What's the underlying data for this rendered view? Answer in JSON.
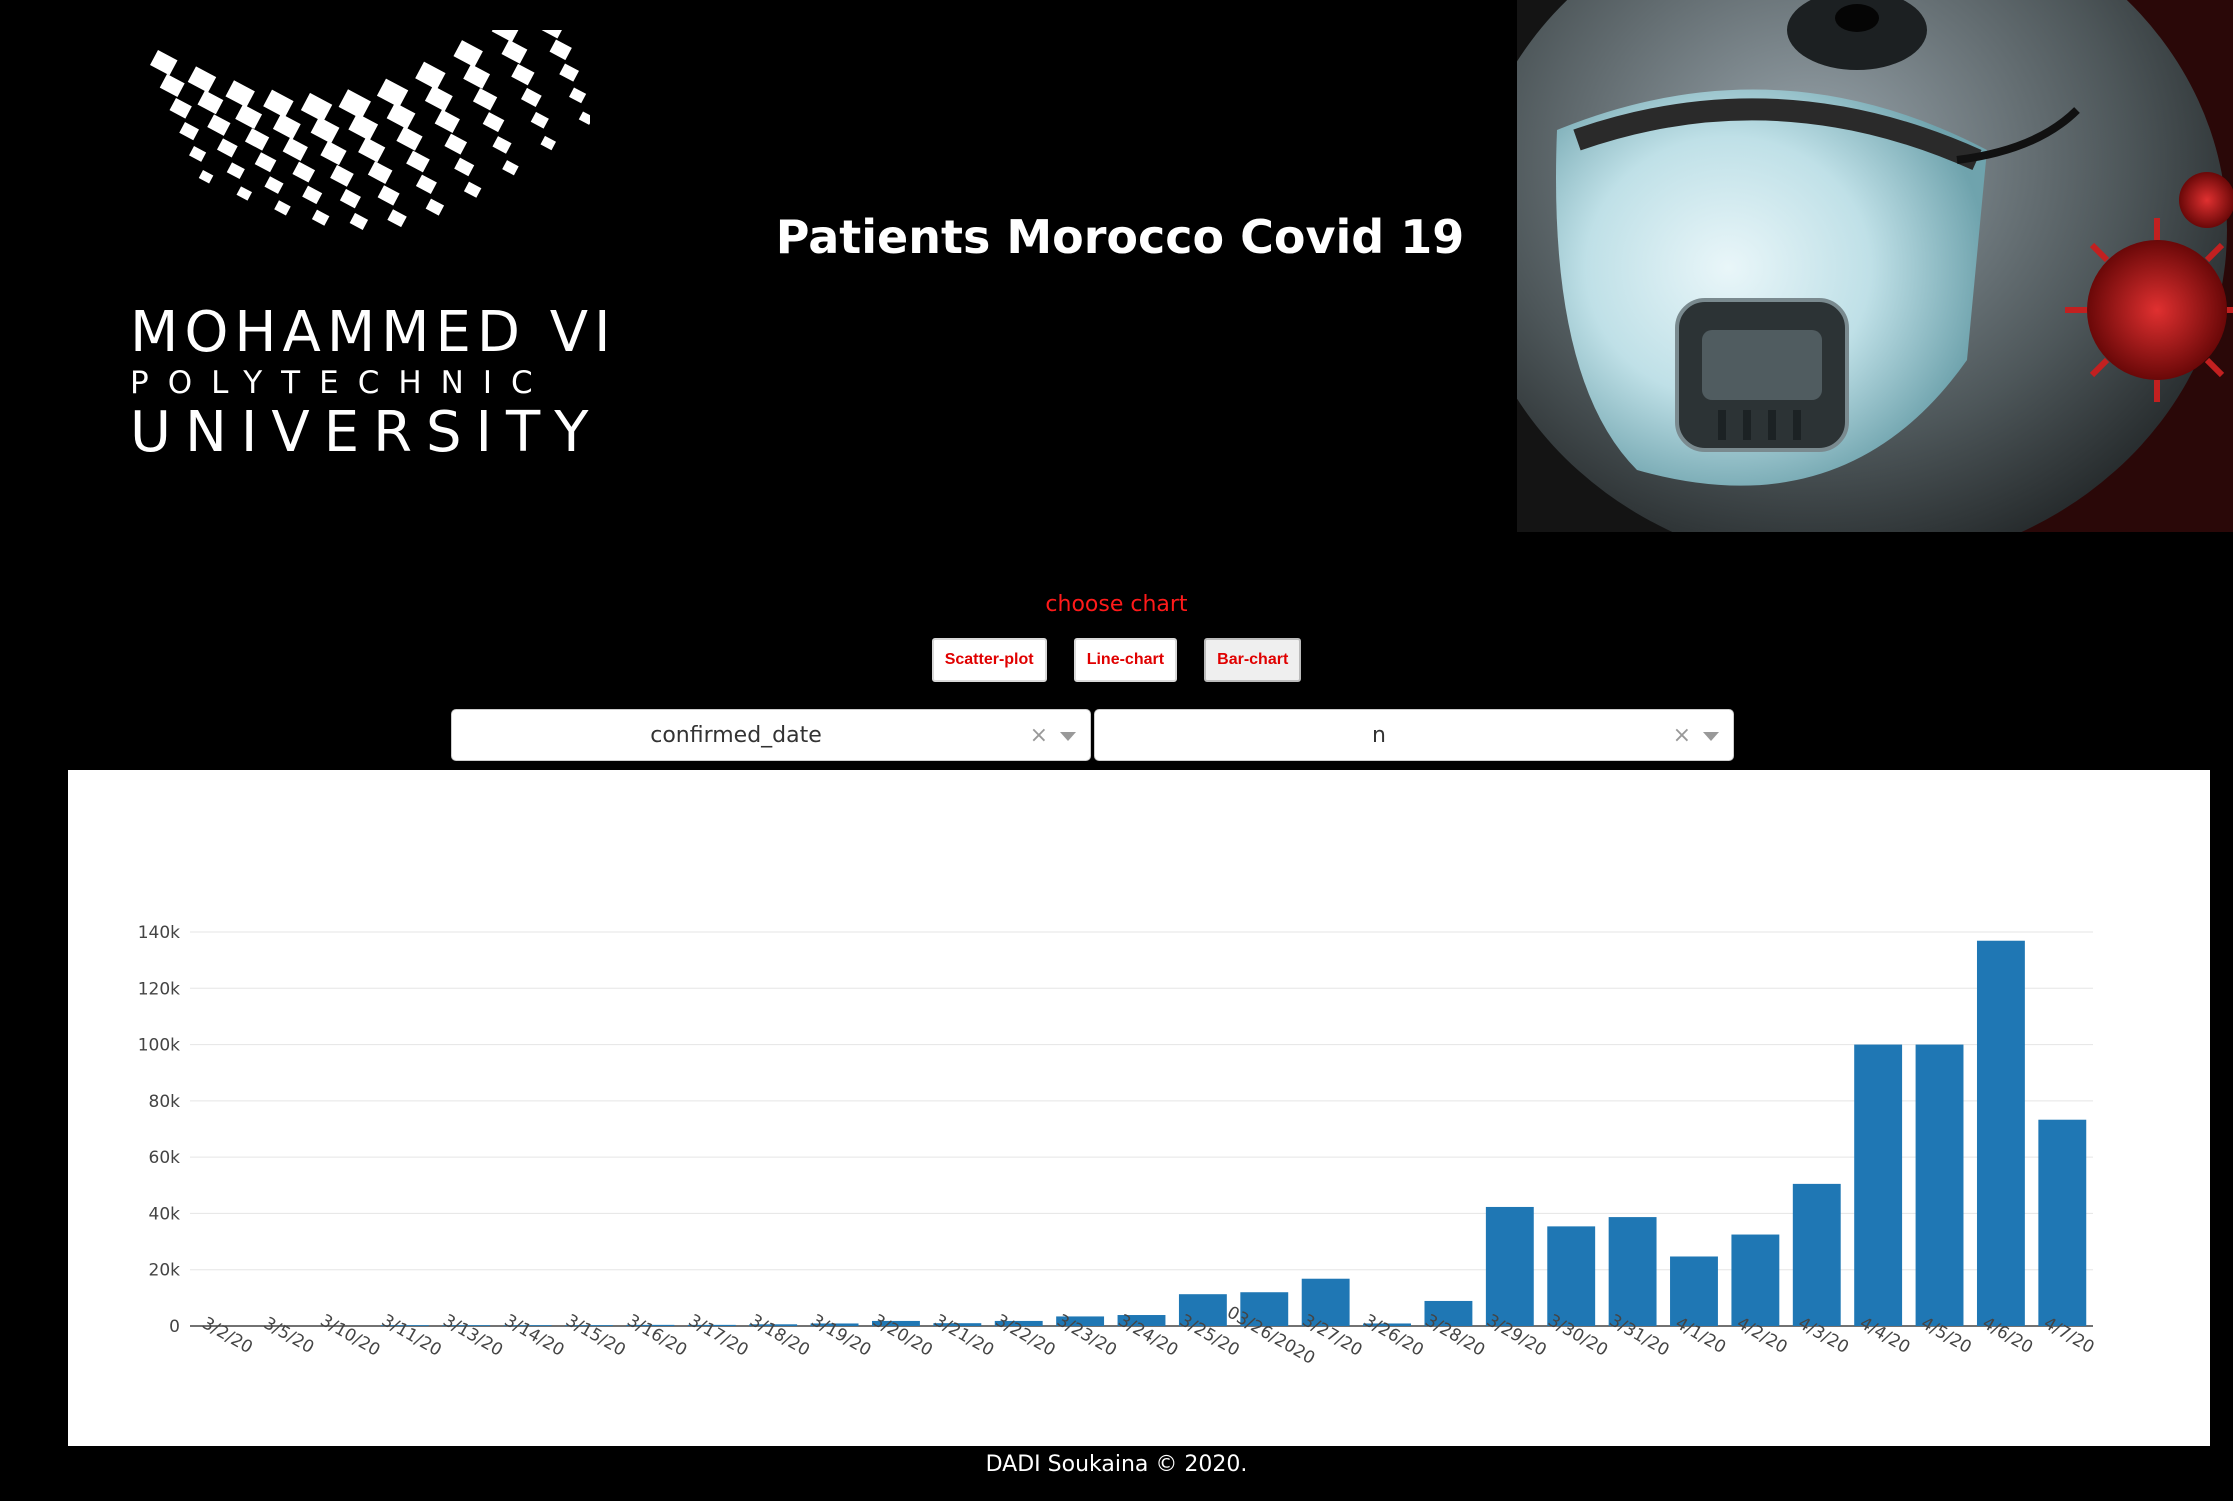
{
  "header": {
    "logo": {
      "line1": "MOHAMMED VI",
      "line2": "POLYTECHNIC",
      "line3": "UNIVERSITY"
    },
    "title": "Patients Morocco Covid 19"
  },
  "controls": {
    "choose_label": "choose chart",
    "buttons": [
      {
        "label": "Scatter-plot",
        "active": false
      },
      {
        "label": "Line-chart",
        "active": false
      },
      {
        "label": "Bar-chart",
        "active": true
      }
    ],
    "x_dropdown": {
      "value": "confirmed_date",
      "clear": "×"
    },
    "y_dropdown": {
      "value": "n",
      "clear": "×"
    }
  },
  "chart_data": {
    "type": "bar",
    "title": "",
    "xlabel": "",
    "ylabel": "",
    "ylim": [
      0,
      140000
    ],
    "yticks": [
      0,
      20000,
      40000,
      60000,
      80000,
      100000,
      120000,
      140000
    ],
    "ytick_labels": [
      "0",
      "20k",
      "40k",
      "60k",
      "80k",
      "100k",
      "120k",
      "140k"
    ],
    "grid": true,
    "bar_color": "#1f77b4",
    "categories": [
      "3/2/20",
      "3/5/20",
      "3/10/20",
      "3/11/20",
      "3/13/20",
      "3/14/20",
      "3/15/20",
      "3/16/20",
      "3/17/20",
      "3/18/20",
      "3/19/20",
      "3/20/20",
      "3/21/20",
      "3/22/20",
      "3/23/20",
      "3/24/20",
      "3/25/20",
      "03/26/2020",
      "3/27/20",
      "3/26/20",
      "3/28/20",
      "3/29/20",
      "3/30/20",
      "3/31/20",
      "4/1/20",
      "4/2/20",
      "4/3/20",
      "4/4/20",
      "4/5/20",
      "4/6/20",
      "4/7/20"
    ],
    "values": [
      0,
      0,
      0,
      300,
      300,
      300,
      300,
      400,
      400,
      600,
      900,
      1800,
      1000,
      1800,
      3400,
      3900,
      11300,
      12000,
      16800,
      900,
      8900,
      42300,
      35400,
      38700,
      24700,
      32500,
      50500,
      100000,
      100000,
      136900,
      73300
    ]
  },
  "footer": {
    "text": "DADI Soukaina © 2020."
  }
}
